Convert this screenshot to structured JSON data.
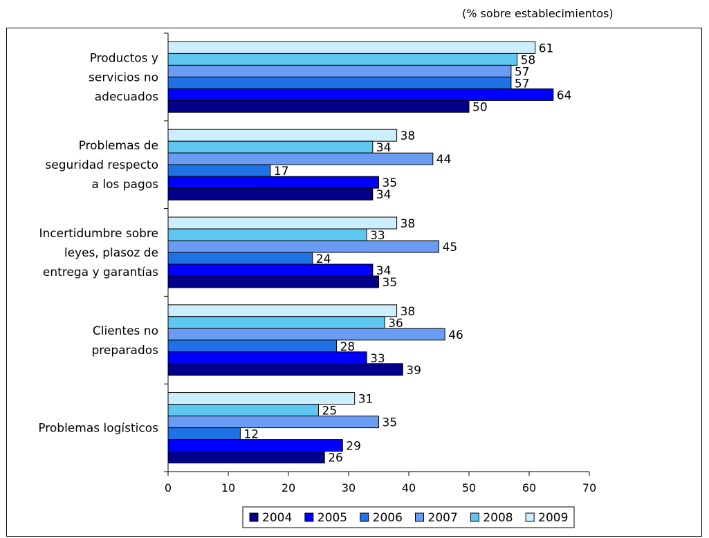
{
  "subtitle": "(% sobre establecimientos)",
  "chart_data": {
    "type": "bar",
    "orientation": "horizontal",
    "title": "",
    "subtitle": "(% sobre establecimientos)",
    "xlabel": "",
    "ylabel": "",
    "xlim": [
      0,
      70
    ],
    "xticks": [
      0,
      10,
      20,
      30,
      40,
      50,
      60,
      70
    ],
    "grid": false,
    "legend_position": "bottom",
    "categories": [
      [
        "Productos y",
        "servicios no",
        "adecuados"
      ],
      [
        "Problemas de",
        "seguridad respecto",
        "a los pagos"
      ],
      [
        "Incertidumbre sobre",
        "leyes, plasoz de",
        "entrega y garantías"
      ],
      [
        "Clientes no",
        "preparados"
      ],
      [
        "Problemas logísticos"
      ]
    ],
    "series": [
      {
        "name": "2004",
        "color": "#00008b",
        "values": [
          50,
          34,
          35,
          39,
          26
        ]
      },
      {
        "name": "2005",
        "color": "#0000ff",
        "values": [
          64,
          35,
          34,
          33,
          29
        ]
      },
      {
        "name": "2006",
        "color": "#1e72e6",
        "values": [
          57,
          17,
          24,
          28,
          12
        ]
      },
      {
        "name": "2007",
        "color": "#6b9cf4",
        "values": [
          57,
          44,
          45,
          46,
          35
        ]
      },
      {
        "name": "2008",
        "color": "#5fc6f0",
        "values": [
          58,
          34,
          33,
          36,
          25
        ]
      },
      {
        "name": "2009",
        "color": "#cdeefc",
        "values": [
          61,
          38,
          38,
          38,
          31
        ]
      }
    ]
  }
}
